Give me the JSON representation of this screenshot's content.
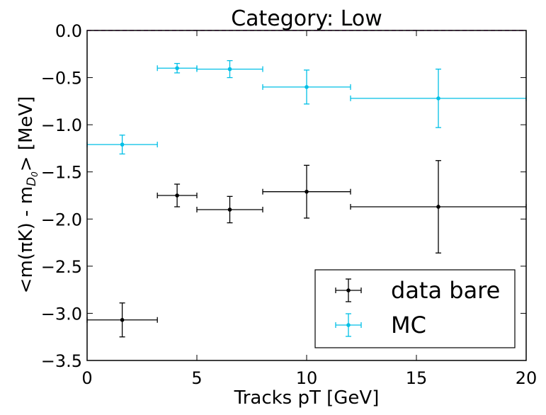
{
  "chart_data": {
    "type": "scatter",
    "title": "Category: Low",
    "xlabel": "Tracks pT [GeV]",
    "ylabel_main": "<m(πK) - m",
    "ylabel_sub": "D",
    "ylabel_subsub": "0",
    "ylabel_tail": "> [MeV]",
    "xlim": [
      0,
      20
    ],
    "ylim": [
      -3.5,
      0.0
    ],
    "xticks": [
      0,
      5,
      10,
      15,
      20
    ],
    "xtick_labels": [
      "0",
      "5",
      "10",
      "15",
      "20"
    ],
    "yticks": [
      0.0,
      -0.5,
      -1.0,
      -1.5,
      -2.0,
      -2.5,
      -3.0,
      -3.5
    ],
    "ytick_labels": [
      "0.0",
      "−0.5",
      "−1.0",
      "−1.5",
      "−2.0",
      "−2.5",
      "−3.0",
      "−3.5"
    ],
    "reference_line": {
      "y": 0.0,
      "color": "#cc44cc",
      "style": "dashed"
    },
    "legend_position": "lower-right",
    "series": [
      {
        "name": "data bare",
        "color": "#000000",
        "points": [
          {
            "x": 1.6,
            "y": -3.07,
            "xlo": 0.0,
            "xhi": 3.2,
            "yerr": 0.18
          },
          {
            "x": 4.1,
            "y": -1.75,
            "xlo": 3.2,
            "xhi": 5.0,
            "yerr": 0.12
          },
          {
            "x": 6.5,
            "y": -1.9,
            "xlo": 5.0,
            "xhi": 8.0,
            "yerr": 0.14
          },
          {
            "x": 10.0,
            "y": -1.71,
            "xlo": 8.0,
            "xhi": 12.0,
            "yerr": 0.28
          },
          {
            "x": 16.0,
            "y": -1.87,
            "xlo": 12.0,
            "xhi": 20.0,
            "yerr": 0.49
          }
        ]
      },
      {
        "name": "MC",
        "color": "#00bfe6",
        "points": [
          {
            "x": 1.6,
            "y": -1.21,
            "xlo": 0.0,
            "xhi": 3.2,
            "yerr": 0.1
          },
          {
            "x": 4.1,
            "y": -0.4,
            "xlo": 3.2,
            "xhi": 5.0,
            "yerr": 0.05
          },
          {
            "x": 6.5,
            "y": -0.41,
            "xlo": 5.0,
            "xhi": 8.0,
            "yerr": 0.09
          },
          {
            "x": 10.0,
            "y": -0.6,
            "xlo": 8.0,
            "xhi": 12.0,
            "yerr": 0.18
          },
          {
            "x": 16.0,
            "y": -0.72,
            "xlo": 12.0,
            "xhi": 20.0,
            "yerr": 0.31
          }
        ]
      }
    ]
  }
}
